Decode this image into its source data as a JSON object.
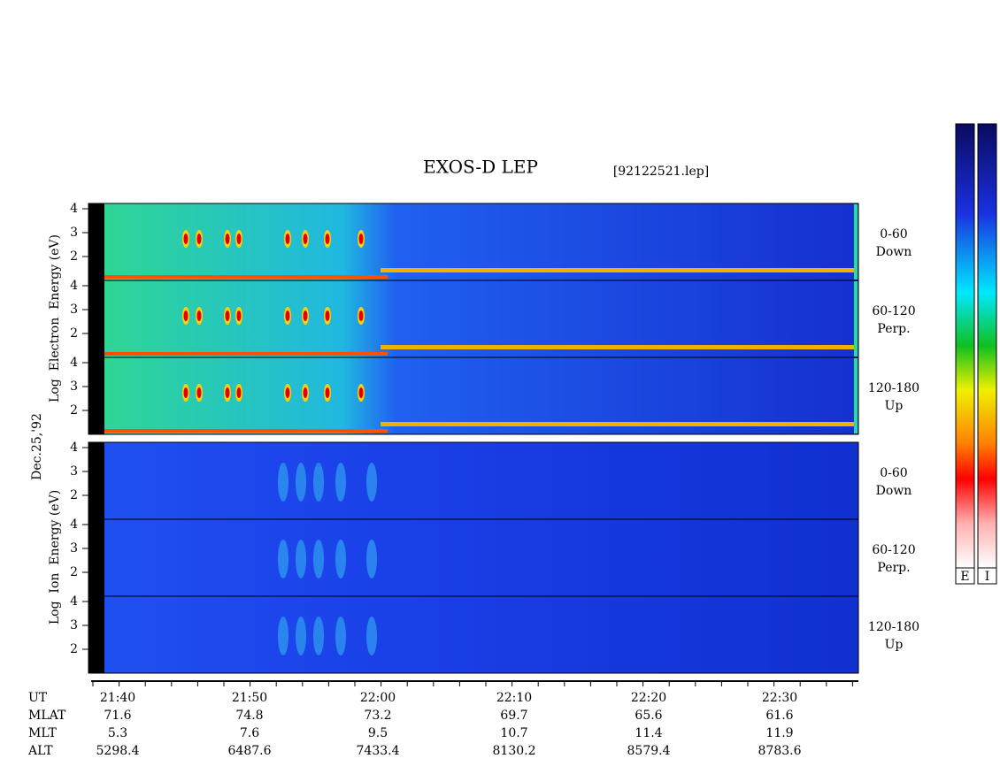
{
  "header": {
    "title": "EXOS-D LEP",
    "file": "[92122521.lep]"
  },
  "date": "Dec.25,'92",
  "groups": [
    {
      "axis_label": "Log  Electron  Energy (eV)",
      "panels": [
        {
          "ticks": [
            "4",
            "3",
            "2"
          ],
          "angle": "0-60",
          "direction": "Down"
        },
        {
          "ticks": [
            "4",
            "3",
            "2"
          ],
          "angle": "60-120",
          "direction": "Perp."
        },
        {
          "ticks": [
            "4",
            "3",
            "2"
          ],
          "angle": "120-180",
          "direction": "Up"
        }
      ]
    },
    {
      "axis_label": "Log  Ion  Energy (eV)",
      "panels": [
        {
          "ticks": [
            "4",
            "3",
            "2"
          ],
          "angle": "0-60",
          "direction": "Down"
        },
        {
          "ticks": [
            "4",
            "3",
            "2"
          ],
          "angle": "60-120",
          "direction": "Perp."
        },
        {
          "ticks": [
            "4",
            "3",
            "2"
          ],
          "angle": "120-180",
          "direction": "Up"
        }
      ]
    }
  ],
  "time_axis": {
    "rows": [
      {
        "label": "UT",
        "values": [
          "21:40",
          "21:50",
          "22:00",
          "22:10",
          "22:20",
          "22:30"
        ]
      },
      {
        "label": "MLAT",
        "values": [
          "71.6",
          "74.8",
          "73.2",
          "69.7",
          "65.6",
          "61.6"
        ]
      },
      {
        "label": "MLT",
        "values": [
          "5.3",
          "7.6",
          "9.5",
          "10.7",
          "11.4",
          "11.9"
        ]
      },
      {
        "label": "ALT",
        "values": [
          "5298.4",
          "6487.6",
          "7433.4",
          "8130.2",
          "8579.4",
          "8783.6"
        ]
      }
    ]
  },
  "colorbars": [
    "E",
    "I"
  ]
}
